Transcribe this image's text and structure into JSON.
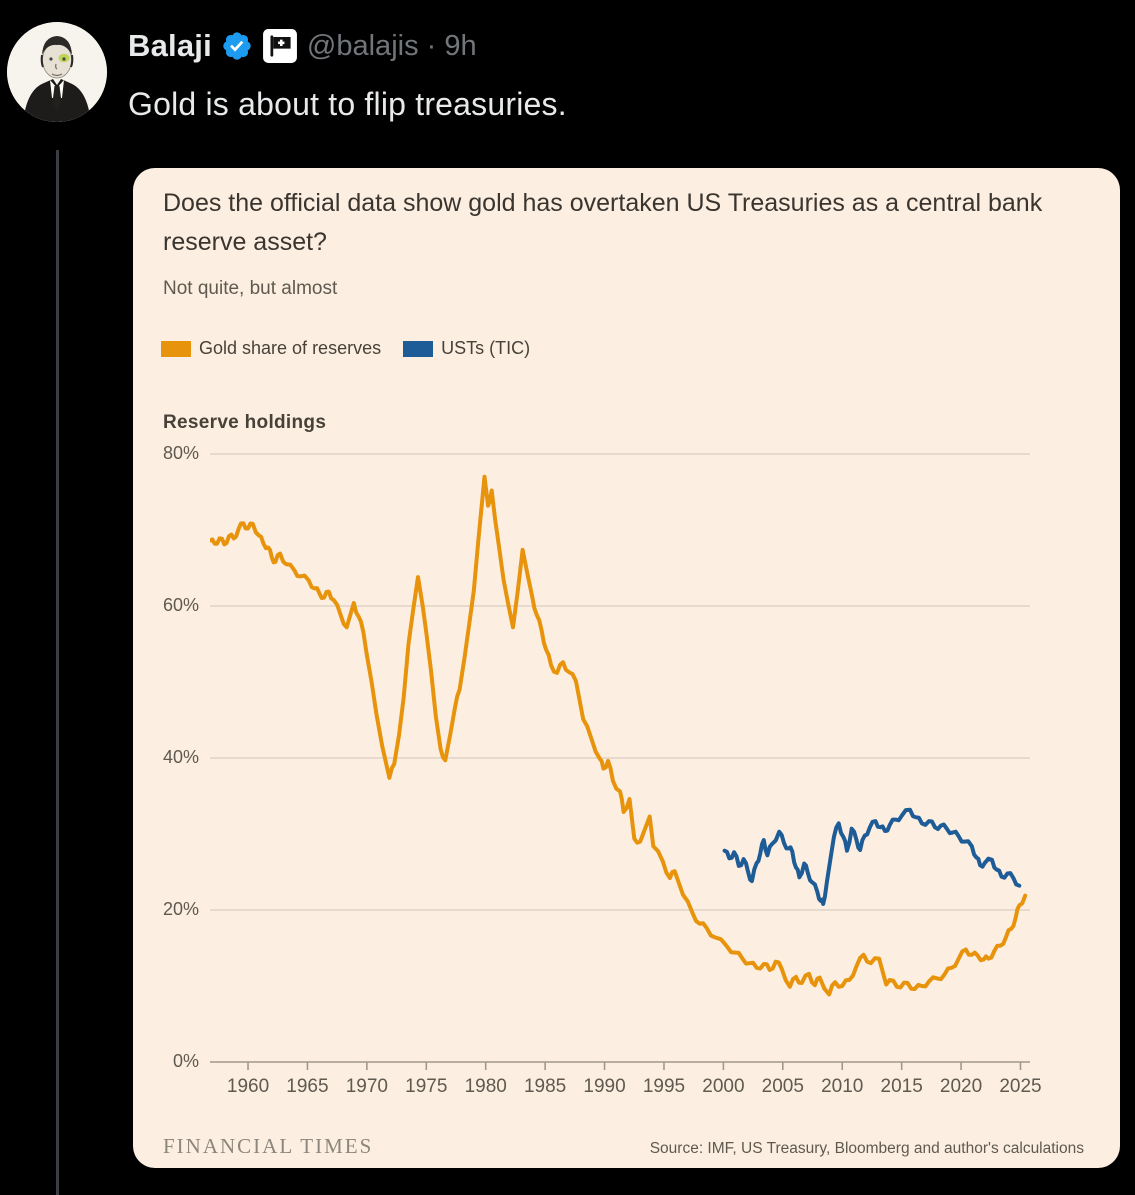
{
  "post": {
    "author": "Balaji",
    "handle": "@balajis",
    "separator": "·",
    "time": "9h",
    "text": "Gold is about to flip treasuries.",
    "verified_color": "#1d9bf0"
  },
  "card": {
    "footer_brand": "FINANCIAL TIMES",
    "source": "Source: IMF, US Treasury, Bloomberg and author's calculations",
    "background": "#fcefe2"
  },
  "chart_data": {
    "type": "line",
    "title": "Does the official data show gold has overtaken US Treasuries as a central bank reserve asset?",
    "subtitle": "Not quite, but almost",
    "axis_title": "Reserve holdings",
    "grid": "horizontal",
    "legend_position": "top",
    "xlim": [
      1956.8,
      2025.8
    ],
    "ylim": [
      0,
      80
    ],
    "yticks": [
      80,
      60,
      40,
      20,
      0
    ],
    "ytick_labels": [
      "80%",
      "60%",
      "40%",
      "20%",
      "0%"
    ],
    "xticks": [
      1960,
      1965,
      1970,
      1975,
      1980,
      1985,
      1990,
      1995,
      2000,
      2005,
      2010,
      2015,
      2020,
      2025
    ],
    "grid_color": "#d9cdbf",
    "axis_color": "#a29889",
    "series": [
      {
        "name": "Gold share of reserves",
        "color": "#E8930C",
        "points": [
          [
            1956.8,
            68.6
          ],
          [
            1957.2,
            68.2
          ],
          [
            1957.6,
            68.9
          ],
          [
            1958,
            68.1
          ],
          [
            1958.4,
            69.2
          ],
          [
            1958.8,
            68.9
          ],
          [
            1959.2,
            70.1
          ],
          [
            1959.6,
            70.9
          ],
          [
            1960,
            70.2
          ],
          [
            1960.4,
            70.8
          ],
          [
            1960.9,
            69.3
          ],
          [
            1961.3,
            68.2
          ],
          [
            1961.7,
            67.7
          ],
          [
            1962,
            66.4
          ],
          [
            1962.3,
            65.8
          ],
          [
            1962.7,
            66.9
          ],
          [
            1963.2,
            65.5
          ],
          [
            1963.9,
            64.7
          ],
          [
            1964.4,
            63.9
          ],
          [
            1965.1,
            63.4
          ],
          [
            1965.6,
            62.3
          ],
          [
            1966,
            61.7
          ],
          [
            1966.4,
            61.1
          ],
          [
            1966.8,
            61.9
          ],
          [
            1967.2,
            60.8
          ],
          [
            1967.8,
            58.8
          ],
          [
            1968.3,
            57.2
          ],
          [
            1968.9,
            60.4
          ],
          [
            1969.3,
            58.6
          ],
          [
            1969.7,
            56.6
          ],
          [
            1970,
            53.5
          ],
          [
            1970.4,
            50
          ],
          [
            1970.8,
            45.8
          ],
          [
            1971.3,
            41.5
          ],
          [
            1971.9,
            37.4
          ],
          [
            1972.3,
            39.2
          ],
          [
            1972.7,
            43
          ],
          [
            1973.1,
            48
          ],
          [
            1973.5,
            55
          ],
          [
            1973.9,
            59.5
          ],
          [
            1974.3,
            63.8
          ],
          [
            1974.7,
            60
          ],
          [
            1975,
            56.5
          ],
          [
            1975.4,
            51.5
          ],
          [
            1975.8,
            45.5
          ],
          [
            1976.2,
            41.2
          ],
          [
            1976.6,
            39.7
          ],
          [
            1977,
            43
          ],
          [
            1977.4,
            46.5
          ],
          [
            1977.8,
            49
          ],
          [
            1978.2,
            53
          ],
          [
            1978.6,
            57.5
          ],
          [
            1979,
            62
          ],
          [
            1979.4,
            69
          ],
          [
            1979.9,
            77
          ],
          [
            1980.2,
            73.2
          ],
          [
            1980.5,
            75.2
          ],
          [
            1980.8,
            71.3
          ],
          [
            1981.1,
            68
          ],
          [
            1981.5,
            63.5
          ],
          [
            1981.9,
            60.2
          ],
          [
            1982.3,
            57.2
          ],
          [
            1982.7,
            62
          ],
          [
            1983.1,
            67.4
          ],
          [
            1983.5,
            64.3
          ],
          [
            1983.9,
            61.3
          ],
          [
            1984.3,
            58.8
          ],
          [
            1984.7,
            56.8
          ],
          [
            1985.1,
            54.2
          ],
          [
            1985.5,
            52.2
          ],
          [
            1986,
            51.2
          ],
          [
            1986.5,
            52.6
          ],
          [
            1987,
            51.3
          ],
          [
            1987.6,
            50.1
          ],
          [
            1988.2,
            45.1
          ],
          [
            1988.9,
            42.5
          ],
          [
            1989.6,
            39.9
          ],
          [
            1989.9,
            38.6
          ],
          [
            1990.3,
            39.6
          ],
          [
            1990.7,
            37
          ],
          [
            1991.3,
            35.6
          ],
          [
            1991.6,
            32.9
          ],
          [
            1992.1,
            34.6
          ],
          [
            1992.5,
            29.4
          ],
          [
            1993,
            29
          ],
          [
            1993.8,
            32.3
          ],
          [
            1994.1,
            28.4
          ],
          [
            1994.9,
            26.4
          ],
          [
            1995.5,
            24.2
          ],
          [
            1995.9,
            25.1
          ],
          [
            1996.6,
            22
          ],
          [
            1997.4,
            19.6
          ],
          [
            1998,
            18.2
          ],
          [
            1998.6,
            17.6
          ],
          [
            1999.3,
            16.4
          ],
          [
            2000.3,
            15.2
          ],
          [
            2001,
            14.4
          ],
          [
            2001.6,
            13.6
          ],
          [
            2002.2,
            13
          ],
          [
            2002.8,
            12.4
          ],
          [
            2003.4,
            12.9
          ],
          [
            2003.9,
            12.1
          ],
          [
            2004.4,
            13.2
          ],
          [
            2004.9,
            12.3
          ],
          [
            2005.6,
            9.9
          ],
          [
            2006.1,
            11.2
          ],
          [
            2006.6,
            10.4
          ],
          [
            2007.2,
            11.6
          ],
          [
            2007.7,
            10.1
          ],
          [
            2008.1,
            11.1
          ],
          [
            2008.9,
            8.9
          ],
          [
            2009.4,
            10.5
          ],
          [
            2010,
            10
          ],
          [
            2010.6,
            10.8
          ],
          [
            2011.2,
            12.6
          ],
          [
            2011.8,
            14.1
          ],
          [
            2012.4,
            13
          ],
          [
            2013.1,
            13.6
          ],
          [
            2013.7,
            10.2
          ],
          [
            2014.3,
            10.7
          ],
          [
            2014.9,
            9.8
          ],
          [
            2015.5,
            10.4
          ],
          [
            2016.1,
            9.6
          ],
          [
            2016.7,
            10
          ],
          [
            2017.3,
            10.6
          ],
          [
            2018,
            11
          ],
          [
            2018.6,
            11.5
          ],
          [
            2019.2,
            12.4
          ],
          [
            2019.8,
            13.6
          ],
          [
            2020.4,
            14.8
          ],
          [
            2020.9,
            14.1
          ],
          [
            2021.4,
            14
          ],
          [
            2021.9,
            13.5
          ],
          [
            2022.3,
            13.6
          ],
          [
            2022.8,
            14.6
          ],
          [
            2023.3,
            15.3
          ],
          [
            2023.8,
            16.5
          ],
          [
            2024.2,
            17.5
          ],
          [
            2024.6,
            19
          ],
          [
            2024.9,
            20.6
          ],
          [
            2025.4,
            21.9
          ]
        ]
      },
      {
        "name": "USTs (TIC)",
        "color": "#1E5C97",
        "points": [
          [
            2000.1,
            27.8
          ],
          [
            2000.5,
            26.8
          ],
          [
            2000.9,
            27.6
          ],
          [
            2001.3,
            25.8
          ],
          [
            2001.7,
            26.7
          ],
          [
            2002.1,
            24.9
          ],
          [
            2002.4,
            23.8
          ],
          [
            2002.8,
            26.2
          ],
          [
            2003.1,
            27.4
          ],
          [
            2003.4,
            29.2
          ],
          [
            2003.7,
            27.2
          ],
          [
            2004.1,
            28.7
          ],
          [
            2004.7,
            30.3
          ],
          [
            2005.1,
            28.8
          ],
          [
            2005.5,
            28.1
          ],
          [
            2005.8,
            27.7
          ],
          [
            2006.1,
            25.6
          ],
          [
            2006.4,
            24.3
          ],
          [
            2006.8,
            26.1
          ],
          [
            2007.1,
            24.9
          ],
          [
            2007.5,
            23.6
          ],
          [
            2007.9,
            22.4
          ],
          [
            2008.2,
            21.2
          ],
          [
            2008.4,
            20.8
          ],
          [
            2008.7,
            23.6
          ],
          [
            2009,
            26.6
          ],
          [
            2009.3,
            29.6
          ],
          [
            2009.7,
            31.4
          ],
          [
            2010.1,
            29.6
          ],
          [
            2010.4,
            27.8
          ],
          [
            2010.8,
            30.7
          ],
          [
            2011.2,
            29.2
          ],
          [
            2011.5,
            27.9
          ],
          [
            2011.9,
            29.8
          ],
          [
            2012.3,
            30.8
          ],
          [
            2012.8,
            31.7
          ],
          [
            2013.2,
            30.9
          ],
          [
            2013.6,
            30.4
          ],
          [
            2014,
            31.2
          ],
          [
            2014.5,
            31.9
          ],
          [
            2015,
            32.4
          ],
          [
            2015.7,
            33.2
          ],
          [
            2016.2,
            32.2
          ],
          [
            2016.7,
            31.4
          ],
          [
            2017.3,
            31.7
          ],
          [
            2017.8,
            30.9
          ],
          [
            2018.3,
            31.1
          ],
          [
            2018.8,
            30.7
          ],
          [
            2019.3,
            30.2
          ],
          [
            2019.8,
            29.7
          ],
          [
            2020.3,
            29
          ],
          [
            2020.9,
            28.4
          ],
          [
            2021.3,
            26.9
          ],
          [
            2021.6,
            25.9
          ],
          [
            2022,
            26.2
          ],
          [
            2022.6,
            26.6
          ],
          [
            2023,
            25.3
          ],
          [
            2023.4,
            24.4
          ],
          [
            2023.9,
            24.8
          ],
          [
            2024.4,
            24.2
          ],
          [
            2024.9,
            23.2
          ]
        ]
      }
    ]
  }
}
